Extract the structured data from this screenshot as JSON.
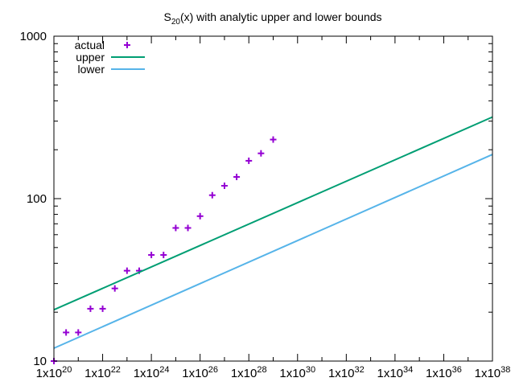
{
  "chart_data": {
    "type": "scatter",
    "title_main": "S",
    "title_sub": "20",
    "title_rest": "(x) with analytic upper and lower bounds",
    "x_scale": "log",
    "y_scale": "log",
    "xlim": [
      1e+20,
      1e+38
    ],
    "ylim": [
      10,
      1000
    ],
    "x_ticks": [
      {
        "value": 1e+20,
        "base": "1x10",
        "exp": "20"
      },
      {
        "value": 1e+22,
        "base": "1x10",
        "exp": "22"
      },
      {
        "value": 1e+24,
        "base": "1x10",
        "exp": "24"
      },
      {
        "value": 1e+26,
        "base": "1x10",
        "exp": "26"
      },
      {
        "value": 1e+28,
        "base": "1x10",
        "exp": "28"
      },
      {
        "value": 1e+30,
        "base": "1x10",
        "exp": "30"
      },
      {
        "value": 1e+32,
        "base": "1x10",
        "exp": "32"
      },
      {
        "value": 1e+34,
        "base": "1x10",
        "exp": "34"
      },
      {
        "value": 1e+36,
        "base": "1x10",
        "exp": "36"
      },
      {
        "value": 1e+38,
        "base": "1x10",
        "exp": "38"
      }
    ],
    "y_ticks": [
      {
        "value": 10,
        "label": "10"
      },
      {
        "value": 100,
        "label": "100"
      },
      {
        "value": 1000,
        "label": "1000"
      }
    ],
    "grid": false,
    "legend_position": "top-left",
    "series": [
      {
        "name": "actual",
        "kind": "points",
        "color": "#9400d3",
        "x": [
          1e+20,
          3.16e+20,
          1e+21,
          3.16e+21,
          1e+22,
          3.16e+22,
          1e+23,
          3.16e+23,
          1e+24,
          3.16e+24,
          1e+25,
          3.16e+25,
          1e+26,
          3.16e+26,
          1e+27,
          3.16e+27,
          1e+28,
          3.16e+28,
          1e+29
        ],
        "x_exp": [
          20,
          20.5,
          21,
          21.5,
          22,
          22.5,
          23,
          23.5,
          24,
          24.5,
          25,
          25.5,
          26,
          26.5,
          27,
          27.5,
          28,
          28.5,
          29
        ],
        "y": [
          10,
          15,
          15,
          21,
          21,
          28,
          36,
          36,
          45,
          45,
          66,
          66,
          78,
          105,
          120,
          136,
          171,
          190,
          231
        ]
      },
      {
        "name": "upper",
        "kind": "line",
        "color": "#009e73",
        "x_exp": [
          20,
          38
        ],
        "y": [
          20.7,
          318
        ]
      },
      {
        "name": "lower",
        "kind": "line",
        "color": "#56b4e9",
        "x_exp": [
          20,
          38
        ],
        "y": [
          12,
          187
        ]
      }
    ]
  }
}
